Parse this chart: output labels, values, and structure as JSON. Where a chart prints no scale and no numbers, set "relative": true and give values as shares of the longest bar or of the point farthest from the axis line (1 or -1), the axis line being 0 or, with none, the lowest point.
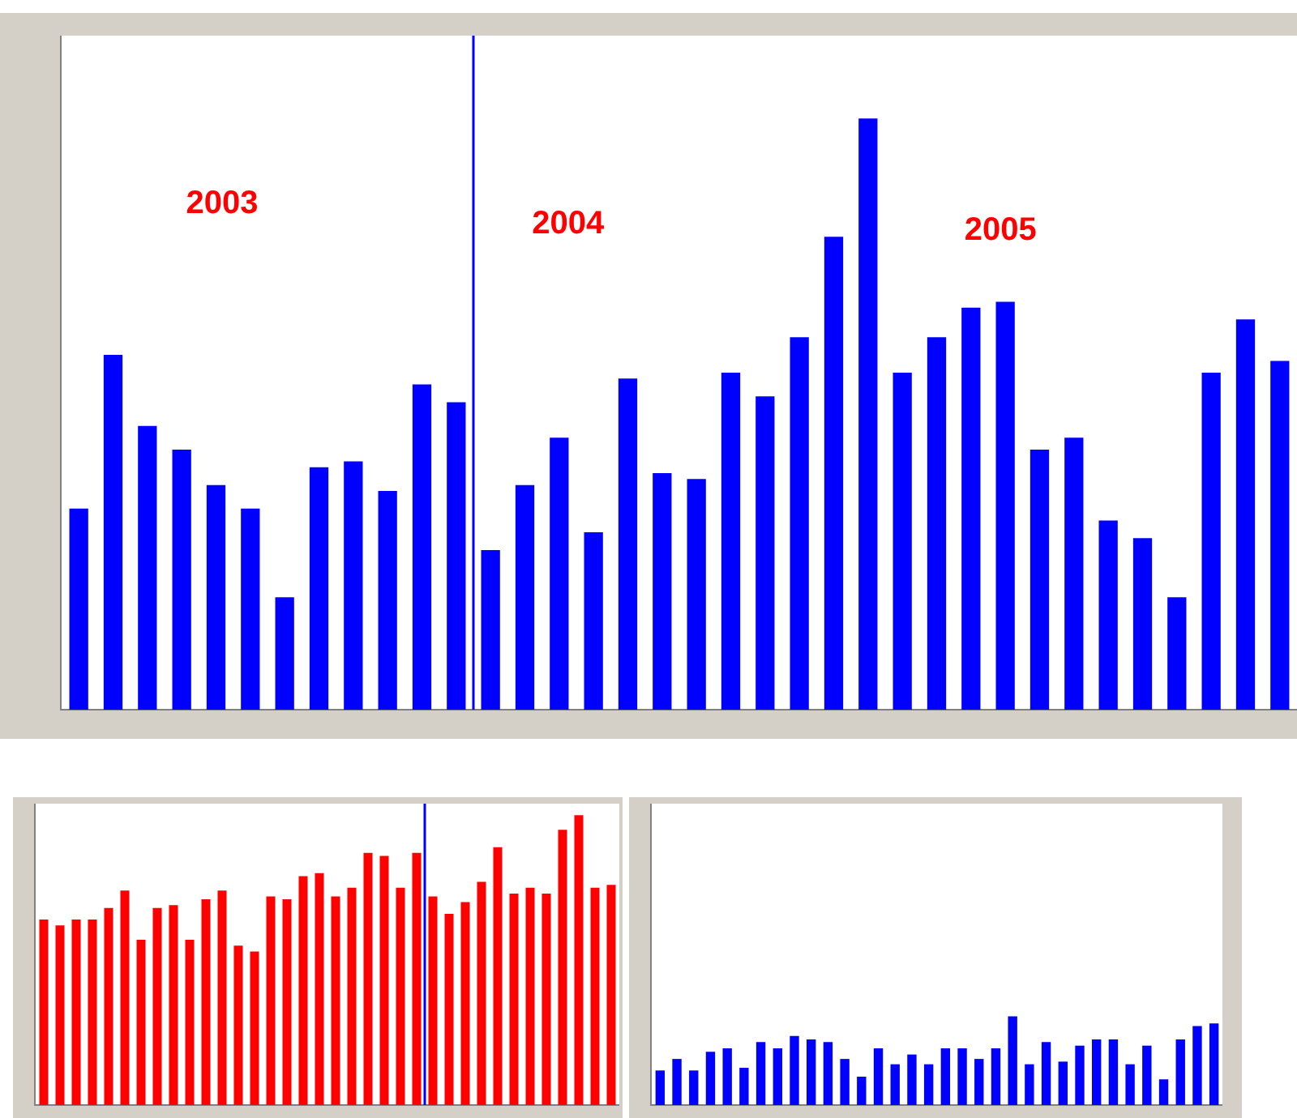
{
  "chart_data": [
    {
      "type": "bar",
      "relative": true,
      "categories": [
        null,
        null,
        null,
        null,
        null,
        null,
        null,
        null,
        null,
        null,
        null,
        null,
        null,
        null,
        null,
        null,
        null,
        null,
        null,
        null,
        null,
        null,
        null,
        null,
        null,
        null,
        null,
        null,
        null,
        null,
        null,
        null,
        null,
        null,
        null,
        null
      ],
      "series": [
        {
          "color": "#0000ff",
          "values": [
            0.34,
            0.6,
            0.48,
            0.44,
            0.38,
            0.34,
            0.19,
            0.41,
            0.42,
            0.37,
            0.55,
            0.52,
            0.27,
            0.38,
            0.46,
            0.3,
            0.56,
            0.4,
            0.39,
            0.57,
            0.53,
            0.63,
            0.8,
            1,
            0.57,
            0.63,
            0.68,
            0.69,
            0.44,
            0.46,
            0.32,
            0.29,
            0.19,
            0.57,
            0.66,
            0.59
          ]
        }
      ],
      "annotations": [
        "2003",
        "2004",
        "2005"
      ],
      "grid": false,
      "legend": false
    },
    {
      "type": "bar",
      "relative": true,
      "categories": [
        null,
        null,
        null,
        null,
        null,
        null,
        null,
        null,
        null,
        null,
        null,
        null,
        null,
        null,
        null,
        null,
        null,
        null,
        null,
        null,
        null,
        null,
        null,
        null,
        null,
        null,
        null,
        null,
        null,
        null,
        null,
        null,
        null,
        null,
        null,
        null
      ],
      "series": [
        {
          "color": "#ff0000",
          "values": [
            0.64,
            0.62,
            0.64,
            0.64,
            0.68,
            0.74,
            0.57,
            0.68,
            0.69,
            0.57,
            0.71,
            0.74,
            0.55,
            0.53,
            0.72,
            0.71,
            0.79,
            0.8,
            0.72,
            0.75,
            0.87,
            0.86,
            0.75,
            0.87,
            0.72,
            0.66,
            0.7,
            0.77,
            0.89,
            0.73,
            0.75,
            0.73,
            0.95,
            1,
            0.75,
            0.76
          ]
        }
      ],
      "grid": false,
      "legend": false
    },
    {
      "type": "bar",
      "relative": true,
      "categories": [
        null,
        null,
        null,
        null,
        null,
        null,
        null,
        null,
        null,
        null,
        null,
        null,
        null,
        null,
        null,
        null,
        null,
        null,
        null,
        null,
        null,
        null,
        null,
        null,
        null,
        null,
        null,
        null,
        null,
        null,
        null,
        null,
        null,
        null
      ],
      "series": [
        {
          "color": "#0000ff",
          "values": [
            0.39,
            0.52,
            0.39,
            0.6,
            0.64,
            0.42,
            0.71,
            0.64,
            0.78,
            0.74,
            0.71,
            0.52,
            0.32,
            0.64,
            0.46,
            0.57,
            0.46,
            0.64,
            0.64,
            0.52,
            0.64,
            1,
            0.46,
            0.71,
            0.49,
            0.67,
            0.74,
            0.74,
            0.46,
            0.67,
            0.29,
            0.74,
            0.89,
            0.92
          ]
        }
      ],
      "grid": false,
      "legend": false
    }
  ]
}
